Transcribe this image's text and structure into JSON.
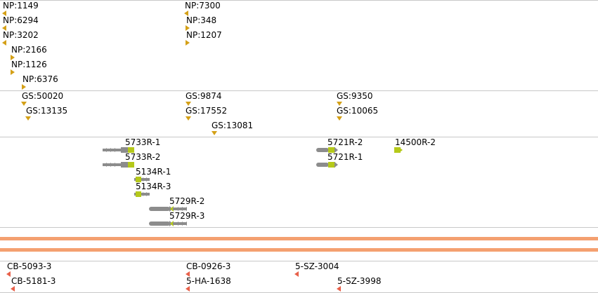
{
  "colors": {
    "track_marker": "#d4a017",
    "gene_body": "#8c8c8c",
    "gene_exon": "#b5c91a",
    "band": "#f4a070",
    "bottom_marker": "#e8604a",
    "divider": "#c8c8c8"
  },
  "np_track": {
    "features": [
      {
        "label": "NP:1149",
        "strand": "left"
      },
      {
        "label": "NP:6294",
        "strand": "left"
      },
      {
        "label": "NP:3202",
        "strand": "left"
      },
      {
        "label": "NP:2166",
        "strand": "right"
      },
      {
        "label": "NP:1126",
        "strand": "right"
      },
      {
        "label": "NP:6376",
        "strand": "right"
      },
      {
        "label": "NP:7300",
        "strand": "left"
      },
      {
        "label": "NP:348",
        "strand": "right"
      },
      {
        "label": "NP:1207",
        "strand": "right"
      }
    ]
  },
  "gs_track": {
    "features": [
      {
        "label": "GS:50020"
      },
      {
        "label": "GS:13135"
      },
      {
        "label": "GS:9874"
      },
      {
        "label": "GS:17552"
      },
      {
        "label": "GS:13081"
      },
      {
        "label": "GS:9350"
      },
      {
        "label": "GS:10065"
      }
    ]
  },
  "gene_track": {
    "features": [
      {
        "label": "5733R-1",
        "strand": "left"
      },
      {
        "label": "5733R-2",
        "strand": "left"
      },
      {
        "label": "5134R-1",
        "strand": "right"
      },
      {
        "label": "5134R-3",
        "strand": "right"
      },
      {
        "label": "5729R-2",
        "strand": "left"
      },
      {
        "label": "5729R-3",
        "strand": "left"
      },
      {
        "label": "5721R-2",
        "strand": "right"
      },
      {
        "label": "5721R-1",
        "strand": "right"
      },
      {
        "label": "14500R-2",
        "strand": "right"
      }
    ]
  },
  "bottom_track": {
    "features": [
      {
        "label": "CB-5093-3"
      },
      {
        "label": "CB-5181-3"
      },
      {
        "label": "CB-0926-3"
      },
      {
        "label": "5-HA-1638"
      },
      {
        "label": "5-SZ-3004"
      },
      {
        "label": "5-SZ-3998"
      }
    ]
  }
}
